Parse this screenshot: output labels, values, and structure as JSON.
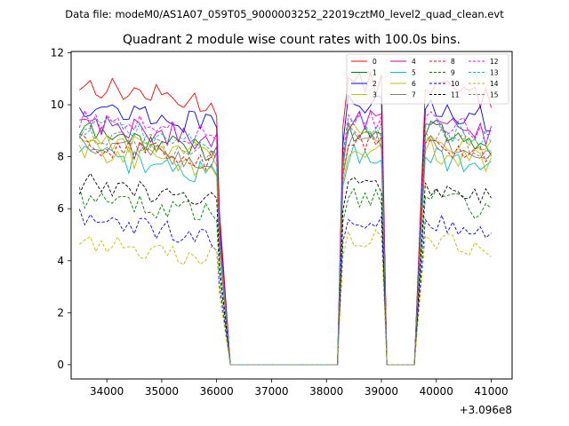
{
  "figure": {
    "suptitle": "Data file: modeM0/AS1A07_059T05_9000003252_22019cztM0_level2_quad_clean.evt"
  },
  "chart_data": {
    "type": "line",
    "title": "Quadrant 2 module wise count rates with 100.0s bins.",
    "xlabel": "",
    "ylabel": "",
    "x_offset_label": "+3.096e8",
    "xlim": [
      33350,
      41380
    ],
    "ylim": [
      -0.55,
      12.05
    ],
    "x_ticks": [
      34000,
      35000,
      36000,
      37000,
      38000,
      39000,
      40000,
      41000
    ],
    "y_ticks": [
      0,
      2,
      4,
      6,
      8,
      10,
      12
    ],
    "grid": false,
    "legend": {
      "placement": "top-right",
      "columns": 4
    },
    "gaps": [
      {
        "drop_start": 36050,
        "zero_start": 36250,
        "zero_end": 38200,
        "rise_end": 38400
      },
      {
        "drop_start": 39000,
        "zero_start": 39100,
        "zero_end": 39600,
        "rise_end": 39800
      }
    ],
    "segments": [
      {
        "start": 33500,
        "end": 36000
      },
      {
        "start": 38400,
        "end": 39000
      },
      {
        "start": 39800,
        "end": 41000
      }
    ],
    "series": [
      {
        "name": "0",
        "color": "#ff0000",
        "dash": "solid",
        "level": 10.8
      },
      {
        "name": "1",
        "color": "#008000",
        "dash": "solid",
        "level": 9.0
      },
      {
        "name": "2",
        "color": "#0000ff",
        "dash": "solid",
        "level": 10.0
      },
      {
        "name": "3",
        "color": "#bfbf00",
        "dash": "solid",
        "level": 8.8
      },
      {
        "name": "4",
        "color": "#bf00bf",
        "dash": "solid",
        "level": 9.4
      },
      {
        "name": "5",
        "color": "#00bfbf",
        "dash": "solid",
        "level": 8.1
      },
      {
        "name": "6",
        "color": "#bfbf00",
        "dash": "solid",
        "level": 8.3
      },
      {
        "name": "7",
        "color": "#808080",
        "dash": "solid",
        "level": 8.6
      },
      {
        "name": "8",
        "color": "#ff0000",
        "dash": "dashed",
        "level": 8.6
      },
      {
        "name": "9",
        "color": "#008000",
        "dash": "dashed",
        "level": 6.5
      },
      {
        "name": "10",
        "color": "#0000ff",
        "dash": "dashed",
        "level": 5.6
      },
      {
        "name": "11",
        "color": "#000000",
        "dash": "dashed",
        "level": 7.0
      },
      {
        "name": "12",
        "color": "#ff00ff",
        "dash": "dashed",
        "level": 9.5
      },
      {
        "name": "13",
        "color": "#00bfbf",
        "dash": "dashed",
        "level": 9.2
      },
      {
        "name": "14",
        "color": "#bfbf00",
        "dash": "dashed",
        "level": 4.9
      },
      {
        "name": "15",
        "color": "#808080",
        "dash": "dashed",
        "level": 8.9
      }
    ]
  }
}
